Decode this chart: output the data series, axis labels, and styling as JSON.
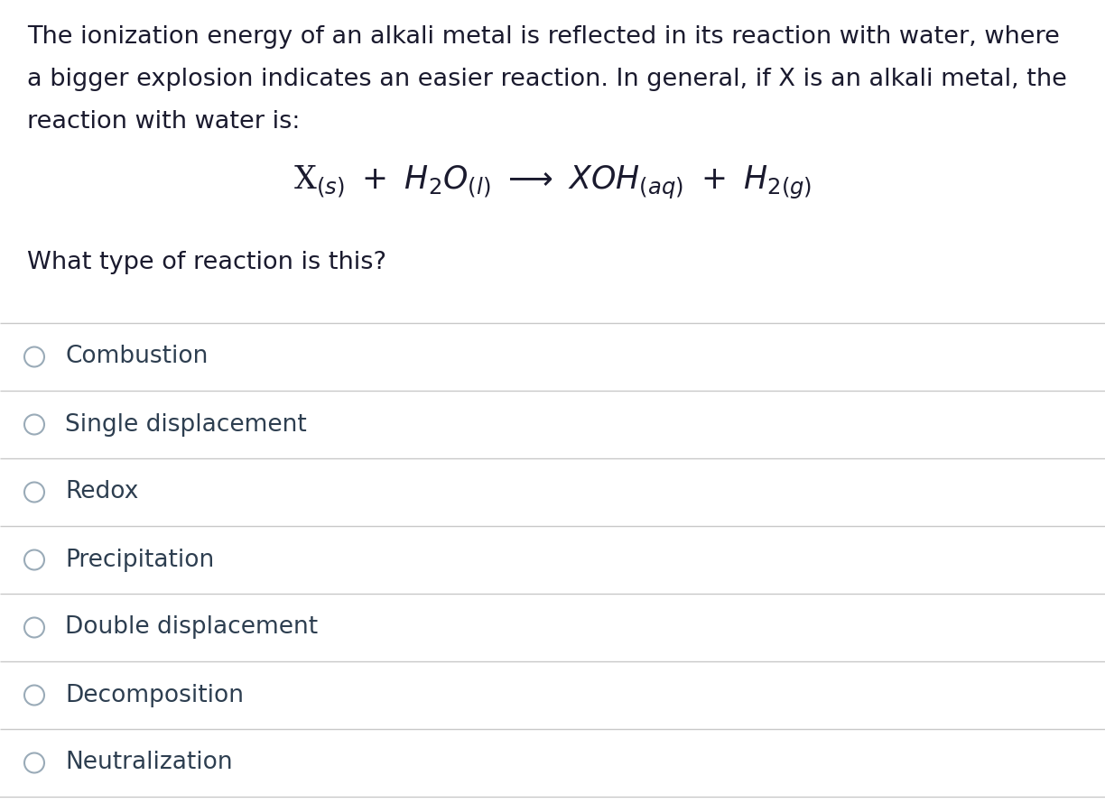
{
  "background_color": "#ffffff",
  "text_color": "#1a1a2e",
  "option_text_color": "#2d3e50",
  "para_line1": "The ionization energy of an alkali metal is reflected in its reaction with water, where",
  "para_line2": "a bigger explosion indicates an easier reaction. In general, if X is an alkali metal, the",
  "para_line3": "reaction with water is:",
  "question": "What type of reaction is this?",
  "options": [
    "Combustion",
    "Single displacement",
    "Redox",
    "Precipitation",
    "Double displacement",
    "Decomposition",
    "Neutralization"
  ],
  "line_color": "#c8c8c8",
  "circle_edge_color": "#9aabb8",
  "paragraph_fontsize": 19.5,
  "equation_fontsize": 25,
  "question_fontsize": 19.5,
  "option_fontsize": 19,
  "fig_width": 12.24,
  "fig_height": 8.9,
  "dpi": 100
}
